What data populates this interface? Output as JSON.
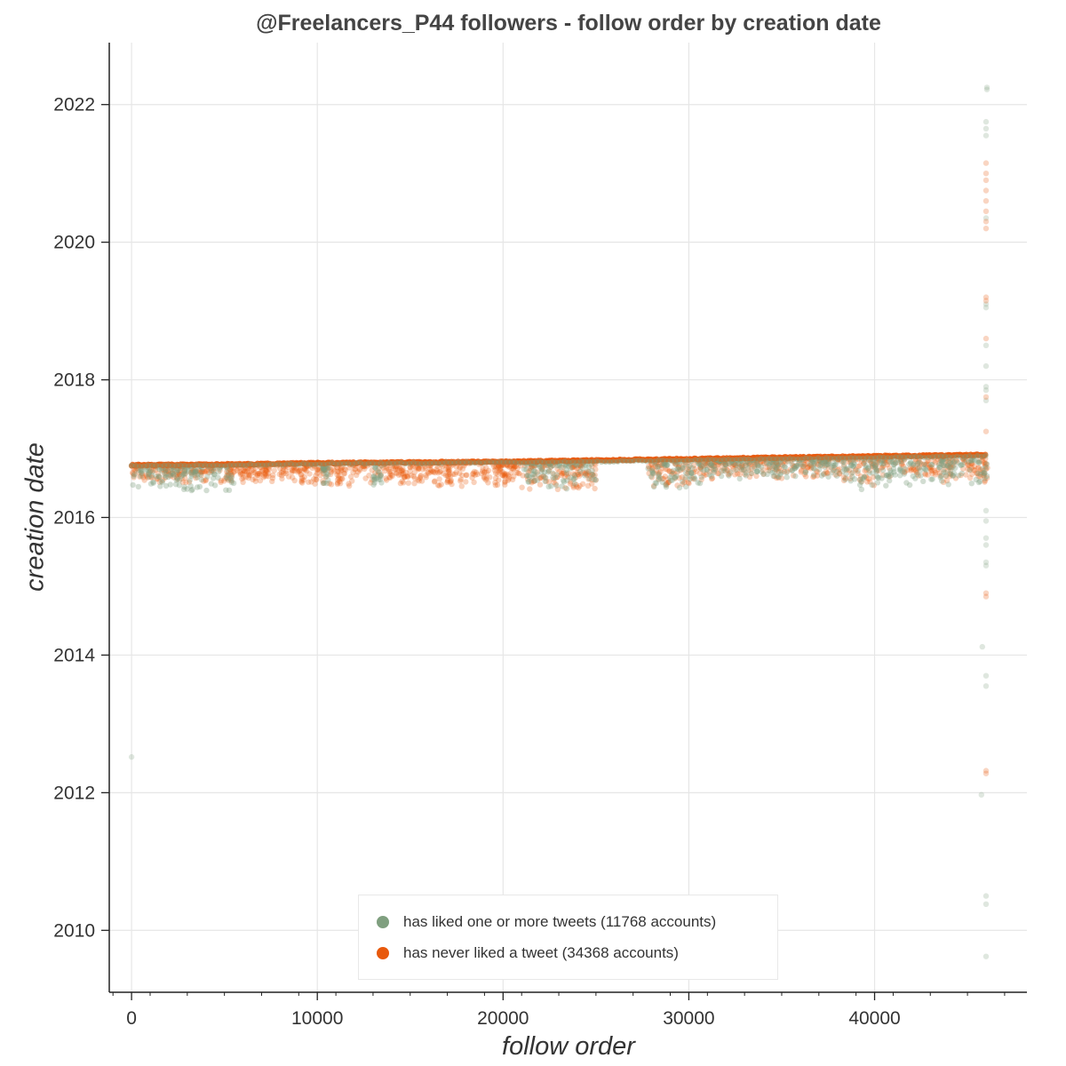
{
  "chart_data": {
    "type": "scatter",
    "title": "@Freelancers_P44 followers - follow order by creation date",
    "xlabel": "follow order",
    "ylabel": "creation date",
    "xlim": [
      -1200,
      48200
    ],
    "ylim": [
      2009.1,
      2022.9
    ],
    "x_ticks": [
      0,
      10000,
      20000,
      30000,
      40000
    ],
    "y_ticks": [
      2010,
      2012,
      2014,
      2016,
      2018,
      2020,
      2022
    ],
    "grid": true,
    "legend_position": "bottom-center",
    "colors": {
      "liked": "#7f9f7f",
      "never_liked": "#e8590c"
    },
    "series": [
      {
        "name": "has liked one or more tweets (11768 accounts)",
        "color": "#7f9f7f",
        "baseline": [
          [
            0,
            2016.76
          ],
          [
            5000,
            2016.77
          ],
          [
            10000,
            2016.79
          ],
          [
            15000,
            2016.8
          ],
          [
            20000,
            2016.81
          ],
          [
            25000,
            2016.82
          ],
          [
            30000,
            2016.84
          ],
          [
            35000,
            2016.86
          ],
          [
            40000,
            2016.88
          ],
          [
            46000,
            2016.9
          ]
        ],
        "clusters": [
          {
            "x": [
              0,
              5500
            ],
            "y": [
              2016.38,
              2016.75
            ]
          },
          {
            "x": [
              10300,
              10600
            ],
            "y": [
              2016.4,
              2016.75
            ]
          },
          {
            "x": [
              13000,
              13500
            ],
            "y": [
              2016.45,
              2016.75
            ]
          },
          {
            "x": [
              21000,
              25000
            ],
            "y": [
              2016.4,
              2016.8
            ]
          },
          {
            "x": [
              27800,
              30800
            ],
            "y": [
              2016.38,
              2016.8
            ]
          },
          {
            "x": [
              30800,
              38000
            ],
            "y": [
              2016.55,
              2016.85
            ]
          },
          {
            "x": [
              38200,
              40000
            ],
            "y": [
              2016.4,
              2016.85
            ]
          },
          {
            "x": [
              40000,
              46100
            ],
            "y": [
              2016.45,
              2016.85
            ]
          }
        ],
        "outliers": [
          [
            0,
            2012.52
          ],
          [
            45800,
            2014.12
          ],
          [
            45750,
            2011.97
          ],
          [
            46000,
            2013.7
          ],
          [
            46000,
            2013.55
          ],
          [
            46000,
            2010.5
          ],
          [
            46000,
            2010.38
          ],
          [
            46000,
            2009.62
          ],
          [
            46050,
            2022.25
          ],
          [
            46050,
            2022.22
          ],
          [
            46000,
            2021.75
          ],
          [
            46000,
            2021.65
          ],
          [
            46000,
            2021.55
          ],
          [
            46000,
            2020.35
          ],
          [
            46000,
            2019.1
          ],
          [
            46000,
            2019.05
          ],
          [
            46000,
            2018.5
          ],
          [
            46000,
            2018.2
          ],
          [
            46000,
            2017.9
          ],
          [
            46000,
            2017.85
          ],
          [
            46000,
            2017.7
          ],
          [
            46000,
            2015.7
          ],
          [
            46000,
            2015.6
          ],
          [
            46000,
            2015.35
          ],
          [
            46000,
            2015.3
          ],
          [
            46000,
            2016.1
          ],
          [
            46000,
            2015.95
          ]
        ]
      },
      {
        "name": "has never liked a tweet (34368 accounts)",
        "color": "#e8590c",
        "baseline": [
          [
            0,
            2016.77
          ],
          [
            5000,
            2016.78
          ],
          [
            10000,
            2016.8
          ],
          [
            15000,
            2016.81
          ],
          [
            20000,
            2016.82
          ],
          [
            25000,
            2016.84
          ],
          [
            30000,
            2016.86
          ],
          [
            35000,
            2016.88
          ],
          [
            40000,
            2016.9
          ],
          [
            46000,
            2016.92
          ]
        ],
        "clusters": [
          {
            "x": [
              0,
              9000
            ],
            "y": [
              2016.5,
              2016.78
            ]
          },
          {
            "x": [
              9000,
              21000
            ],
            "y": [
              2016.45,
              2016.8
            ]
          },
          {
            "x": [
              21000,
              25000
            ],
            "y": [
              2016.4,
              2016.82
            ]
          },
          {
            "x": [
              27800,
              30800
            ],
            "y": [
              2016.45,
              2016.85
            ]
          },
          {
            "x": [
              30800,
              38200
            ],
            "y": [
              2016.55,
              2016.9
            ]
          },
          {
            "x": [
              38200,
              40000
            ],
            "y": [
              2016.45,
              2016.9
            ]
          },
          {
            "x": [
              40000,
              46100
            ],
            "y": [
              2016.5,
              2016.95
            ]
          }
        ],
        "outliers": [
          [
            46000,
            2021.15
          ],
          [
            46000,
            2021.0
          ],
          [
            46000,
            2020.9
          ],
          [
            46000,
            2020.75
          ],
          [
            46000,
            2020.6
          ],
          [
            46000,
            2020.45
          ],
          [
            46000,
            2020.3
          ],
          [
            46000,
            2020.2
          ],
          [
            46000,
            2019.2
          ],
          [
            46000,
            2019.15
          ],
          [
            46000,
            2018.6
          ],
          [
            46000,
            2017.75
          ],
          [
            46000,
            2017.25
          ],
          [
            46000,
            2014.9
          ],
          [
            46000,
            2014.85
          ],
          [
            46000,
            2012.32
          ],
          [
            46000,
            2012.28
          ]
        ]
      }
    ]
  }
}
